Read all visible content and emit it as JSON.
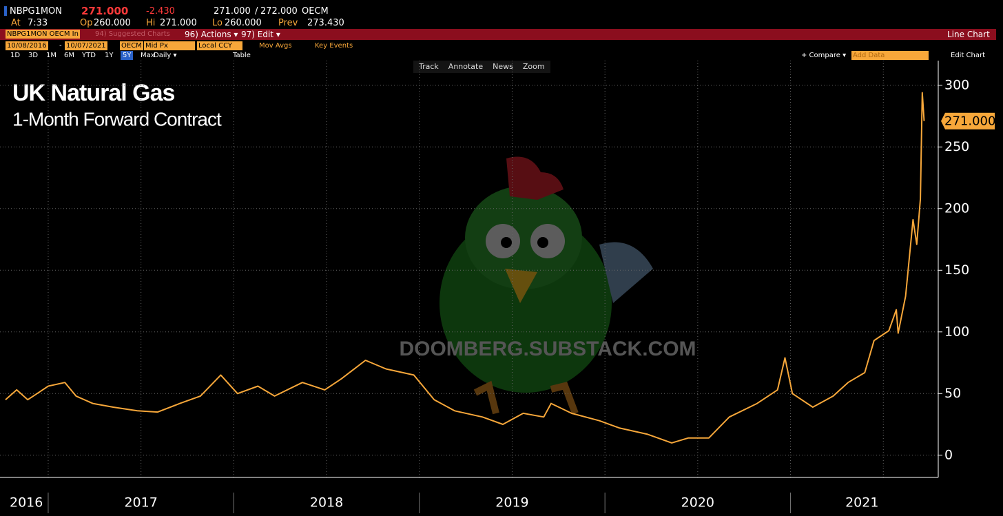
{
  "header": {
    "ticker": "NBPG1MON",
    "last": "271.000",
    "change": "-2.430",
    "bid": "271.000",
    "bid_ask_sep": "/",
    "ask": "272.000",
    "source": "OECM",
    "time_label": "At",
    "time": "7:33",
    "open_label": "Op",
    "open": "260.000",
    "high_label": "Hi",
    "high": "271.000",
    "low_label": "Lo",
    "low": "260.000",
    "prev_label": "Prev",
    "prev": "273.430"
  },
  "menu_bar": {
    "security": "NBPG1MON OECM In",
    "suggested": "94) Suggested Charts",
    "actions": "96) Actions ▾",
    "edit": "97) Edit ▾",
    "chart_type": "Line Chart"
  },
  "settings_bar": {
    "start": "10/08/2016",
    "sep": "-",
    "end": "10/07/2021",
    "source": "OECM",
    "field": "Mid Px",
    "currency": "Local CCY",
    "mov_avgs": "Mov Avgs",
    "key_events": "Key Events"
  },
  "range_bar": {
    "ranges": [
      "1D",
      "3D",
      "1M",
      "6M",
      "YTD",
      "1Y",
      "5Y",
      "Max"
    ],
    "active": "5Y",
    "period": "Daily ▾",
    "table": "Table",
    "compare": "+ Compare ▾",
    "add_data": "Add Data",
    "edit_chart": "Edit Chart"
  },
  "chart_tools": [
    "Track",
    "Annotate",
    "News",
    "Zoom"
  ],
  "watermark": "DOOMBERG.SUBSTACK.COM",
  "chart_data": {
    "type": "line",
    "title": "UK Natural Gas",
    "subtitle": "1-Month Forward Contract",
    "x": [
      2016.77,
      2016.83,
      2016.89,
      2016.94,
      2017.0,
      2017.09,
      2017.15,
      2017.24,
      2017.35,
      2017.48,
      2017.59,
      2017.71,
      2017.82,
      2017.93,
      2018.02,
      2018.13,
      2018.22,
      2018.37,
      2018.49,
      2018.58,
      2018.71,
      2018.82,
      2018.97,
      2019.08,
      2019.19,
      2019.34,
      2019.45,
      2019.56,
      2019.67,
      2019.71,
      2019.82,
      2019.97,
      2020.08,
      2020.23,
      2020.36,
      2020.45,
      2020.56,
      2020.67,
      2020.82,
      2020.93,
      2020.97,
      2021.01,
      2021.12,
      2021.23,
      2021.31,
      2021.4,
      2021.45,
      2021.53,
      2021.57,
      2021.58,
      2021.62,
      2021.66,
      2021.68,
      2021.7,
      2021.71,
      2021.72
    ],
    "series": [
      {
        "name": "NBPG1MON",
        "color": "#f7a73a",
        "values": [
          45,
          53,
          45,
          50,
          56,
          59,
          48,
          42,
          39,
          36,
          35,
          42,
          48,
          65,
          50,
          56,
          48,
          59,
          53,
          62,
          77,
          70,
          65,
          45,
          36,
          31,
          25,
          34,
          31,
          42,
          34,
          28,
          22,
          17,
          10,
          14,
          14,
          31,
          42,
          53,
          79,
          50,
          39,
          48,
          59,
          67,
          93,
          101,
          118,
          99,
          129,
          191,
          171,
          208,
          294,
          271
        ]
      }
    ],
    "last_price_tag": {
      "value": 271,
      "label": "271.000"
    },
    "year_labels": [
      "2016",
      "2017",
      "2018",
      "2019",
      "2020",
      "2021"
    ],
    "xlim": [
      2016.77,
      2021.77
    ],
    "xticks": [
      2017,
      2017.5,
      2018,
      2018.5,
      2019,
      2019.5,
      2020,
      2020.5,
      2021,
      2021.5
    ],
    "ylim": [
      -18,
      320
    ],
    "yticks": [
      0,
      50,
      100,
      150,
      200,
      250,
      300
    ],
    "grid": true
  }
}
